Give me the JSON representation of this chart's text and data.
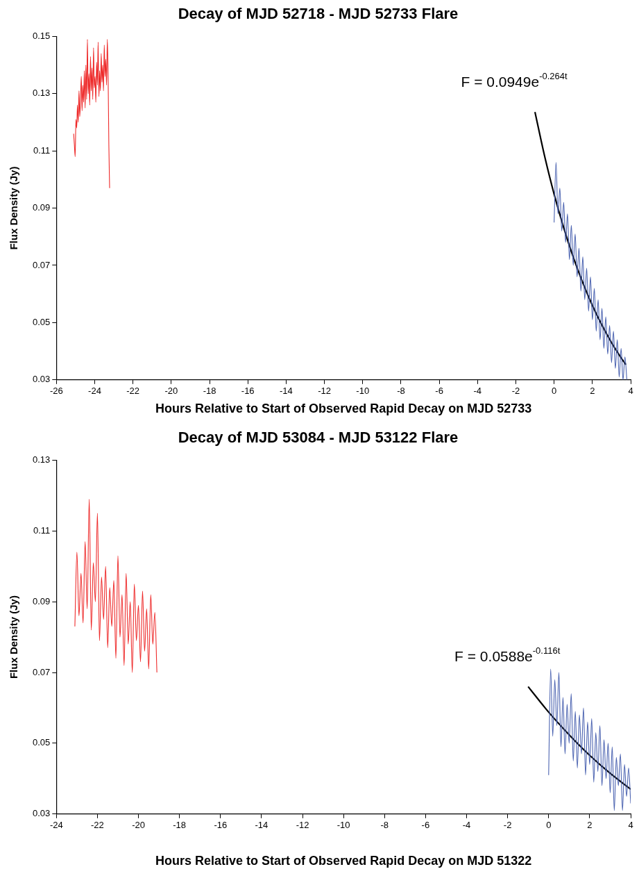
{
  "chart_data": [
    {
      "type": "line",
      "title": "Decay of MJD 52718 - MJD 52733 Flare",
      "xlabel": "Hours Relative to Start of Observed Rapid Decay on MJD 52733",
      "ylabel": "Flux Density (Jy)",
      "xlim": [
        -26,
        4
      ],
      "xticks": [
        -26,
        -24,
        -22,
        -20,
        -18,
        -16,
        -14,
        -12,
        -10,
        -8,
        -6,
        -4,
        -2,
        0,
        2,
        4
      ],
      "ylim": [
        0.03,
        0.15
      ],
      "yticks": [
        0.03,
        0.05,
        0.07,
        0.09,
        0.11,
        0.13,
        0.15
      ],
      "grid": false,
      "legend": false,
      "marker": "none",
      "annotations": [
        "F = 0.0949e$^{-0.264t}$"
      ],
      "series": [
        {
          "color": "#ee2a2a",
          "x": [
            -25.1,
            -25.06,
            -25.02,
            -24.98,
            -24.94,
            -24.9,
            -24.86,
            -24.82,
            -24.78,
            -24.74,
            -24.7,
            -24.66,
            -24.62,
            -24.58,
            -24.54,
            -24.5,
            -24.46,
            -24.42,
            -24.38,
            -24.34,
            -24.3,
            -24.26,
            -24.22,
            -24.18,
            -24.14,
            -24.1,
            -24.06,
            -24.02,
            -23.98,
            -23.94,
            -23.9,
            -23.86,
            -23.82,
            -23.78,
            -23.74,
            -23.7,
            -23.66,
            -23.62,
            -23.58,
            -23.54,
            -23.5,
            -23.46,
            -23.42,
            -23.38,
            -23.34,
            -23.3,
            -23.26,
            -23.22
          ],
          "values": [
            0.116,
            0.112,
            0.108,
            0.121,
            0.118,
            0.126,
            0.12,
            0.131,
            0.122,
            0.128,
            0.136,
            0.124,
            0.133,
            0.127,
            0.138,
            0.125,
            0.14,
            0.128,
            0.149,
            0.13,
            0.137,
            0.126,
            0.143,
            0.131,
            0.139,
            0.128,
            0.146,
            0.132,
            0.136,
            0.127,
            0.141,
            0.133,
            0.148,
            0.129,
            0.138,
            0.131,
            0.144,
            0.134,
            0.14,
            0.131,
            0.147,
            0.136,
            0.142,
            0.133,
            0.149,
            0.137,
            0.112,
            0.097
          ]
        },
        {
          "color": "#4a62b0",
          "x": [
            0,
            0.1,
            0.2,
            0.3,
            0.4,
            0.5,
            0.6,
            0.7,
            0.8,
            0.9,
            1.0,
            1.1,
            1.2,
            1.3,
            1.4,
            1.5,
            1.6,
            1.7,
            1.8,
            1.9,
            2.0,
            2.1,
            2.2,
            2.3,
            2.4,
            2.5,
            2.6,
            2.7,
            2.8,
            2.9,
            3.0,
            3.1,
            3.2,
            3.3,
            3.4,
            3.5,
            3.6,
            3.7,
            3.8
          ],
          "values": [
            0.085,
            0.106,
            0.088,
            0.097,
            0.082,
            0.092,
            0.078,
            0.088,
            0.072,
            0.084,
            0.07,
            0.081,
            0.066,
            0.076,
            0.061,
            0.073,
            0.058,
            0.069,
            0.054,
            0.066,
            0.051,
            0.062,
            0.047,
            0.058,
            0.044,
            0.055,
            0.041,
            0.052,
            0.039,
            0.049,
            0.036,
            0.047,
            0.034,
            0.044,
            0.031,
            0.041,
            0.03,
            0.038,
            0.03
          ]
        },
        {
          "color": "#000000",
          "x": [
            -1,
            -0.5,
            0,
            0.5,
            1,
            1.5,
            2,
            2.5,
            3,
            3.5,
            3.75
          ],
          "values": [
            0.1236,
            0.1083,
            0.0949,
            0.0832,
            0.0729,
            0.0639,
            0.056,
            0.0491,
            0.043,
            0.0377,
            0.0353
          ]
        }
      ]
    },
    {
      "type": "line",
      "title": "Decay of MJD 53084 - MJD 53122 Flare",
      "xlabel": "Hours Relative to Start of Observed Rapid Decay on MJD 51322",
      "ylabel": "Flux Density (Jy)",
      "xlim": [
        -24,
        4
      ],
      "xticks": [
        -24,
        -22,
        -20,
        -18,
        -16,
        -14,
        -12,
        -10,
        -8,
        -6,
        -4,
        -2,
        0,
        2,
        4
      ],
      "ylim": [
        0.03,
        0.13
      ],
      "yticks": [
        0.03,
        0.05,
        0.07,
        0.09,
        0.11,
        0.13
      ],
      "grid": false,
      "legend": false,
      "marker": "none",
      "annotations": [
        "F = 0.0588e$^{-0.116t}$"
      ],
      "series": [
        {
          "color": "#ee2a2a",
          "x": [
            -23.1,
            -23.0,
            -22.9,
            -22.8,
            -22.7,
            -22.6,
            -22.5,
            -22.4,
            -22.3,
            -22.2,
            -22.1,
            -22.0,
            -21.9,
            -21.8,
            -21.7,
            -21.6,
            -21.5,
            -21.4,
            -21.3,
            -21.2,
            -21.1,
            -21.0,
            -20.9,
            -20.8,
            -20.7,
            -20.6,
            -20.5,
            -20.4,
            -20.3,
            -20.2,
            -20.1,
            -20.0,
            -19.9,
            -19.8,
            -19.7,
            -19.6,
            -19.5,
            -19.4,
            -19.3,
            -19.2,
            -19.1
          ],
          "values": [
            0.083,
            0.104,
            0.086,
            0.098,
            0.084,
            0.107,
            0.088,
            0.119,
            0.082,
            0.101,
            0.09,
            0.115,
            0.079,
            0.097,
            0.085,
            0.1,
            0.077,
            0.094,
            0.083,
            0.096,
            0.074,
            0.103,
            0.08,
            0.092,
            0.072,
            0.098,
            0.078,
            0.09,
            0.07,
            0.095,
            0.079,
            0.089,
            0.073,
            0.093,
            0.076,
            0.088,
            0.071,
            0.092,
            0.078,
            0.087,
            0.07
          ]
        },
        {
          "color": "#4a62b0",
          "x": [
            0,
            0.1,
            0.2,
            0.3,
            0.4,
            0.5,
            0.6,
            0.7,
            0.8,
            0.9,
            1.0,
            1.1,
            1.2,
            1.3,
            1.4,
            1.5,
            1.6,
            1.7,
            1.8,
            1.9,
            2.0,
            2.1,
            2.2,
            2.3,
            2.4,
            2.5,
            2.6,
            2.7,
            2.8,
            2.9,
            3.0,
            3.1,
            3.2,
            3.3,
            3.4,
            3.5,
            3.6,
            3.7,
            3.8,
            3.9,
            4.0
          ],
          "values": [
            0.041,
            0.071,
            0.052,
            0.068,
            0.055,
            0.07,
            0.049,
            0.063,
            0.047,
            0.061,
            0.05,
            0.064,
            0.045,
            0.059,
            0.043,
            0.058,
            0.047,
            0.06,
            0.041,
            0.056,
            0.044,
            0.057,
            0.039,
            0.053,
            0.042,
            0.055,
            0.038,
            0.051,
            0.04,
            0.05,
            0.036,
            0.049,
            0.031,
            0.046,
            0.038,
            0.047,
            0.031,
            0.044,
            0.035,
            0.043,
            0.033
          ]
        },
        {
          "color": "#000000",
          "x": [
            -1,
            0,
            1,
            2,
            3,
            4
          ],
          "values": [
            0.066,
            0.0588,
            0.0524,
            0.0466,
            0.0415,
            0.037
          ]
        }
      ]
    }
  ]
}
